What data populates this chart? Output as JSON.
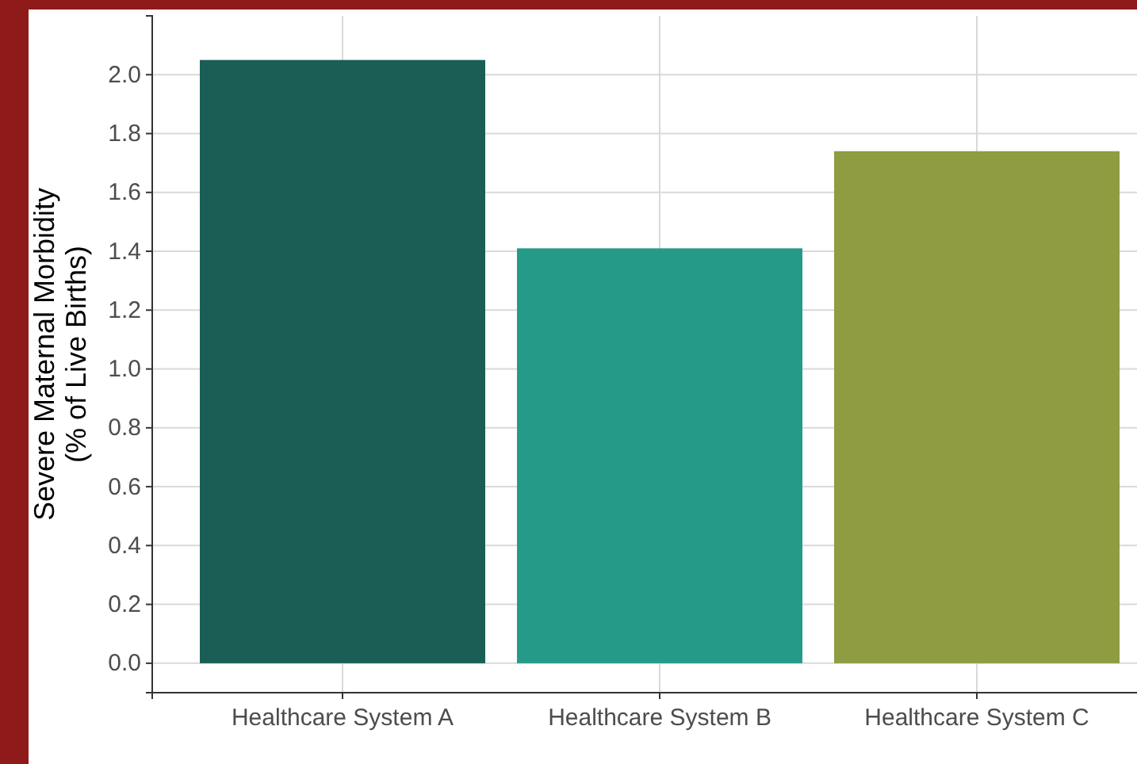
{
  "chart_data": {
    "type": "bar",
    "ylabel": "Severe Maternal Morbidity\n(% of Live Births)",
    "categories": [
      "Healthcare System A",
      "Healthcare System B",
      "Healthcare System C"
    ],
    "values": [
      2.05,
      1.41,
      1.74
    ],
    "colors": [
      "#1a5e55",
      "#269a89",
      "#8f9c41"
    ],
    "ylim": [
      -0.1,
      2.2
    ],
    "yticks": [
      {
        "value": 0,
        "label": "0.0"
      },
      {
        "value": 0.2,
        "label": "0.2"
      },
      {
        "value": 0.4,
        "label": "0.4"
      },
      {
        "value": 0.6,
        "label": "0.6"
      },
      {
        "value": 0.8,
        "label": "0.8"
      },
      {
        "value": 1,
        "label": "1.0"
      },
      {
        "value": 1.2,
        "label": "1.2"
      },
      {
        "value": 1.4,
        "label": "1.4"
      },
      {
        "value": 1.6,
        "label": "1.6"
      },
      {
        "value": 1.8,
        "label": "1.8"
      },
      {
        "value": 2,
        "label": "2.0"
      }
    ],
    "grid": true
  }
}
